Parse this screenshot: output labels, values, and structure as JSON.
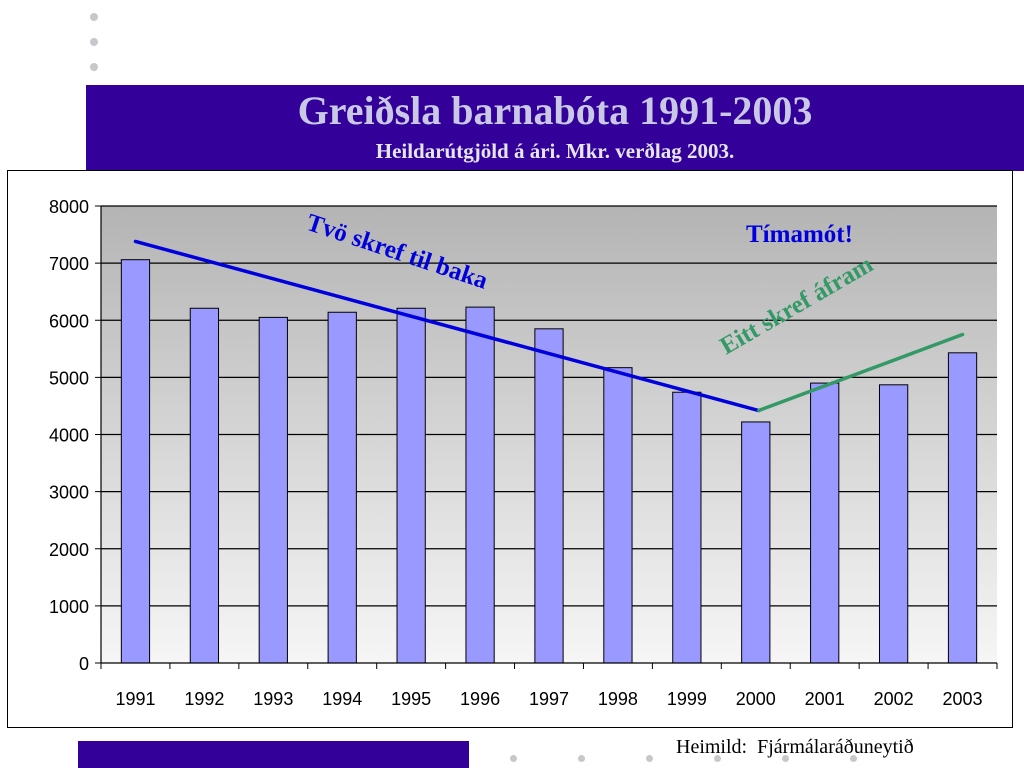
{
  "slide": {
    "title": "Greiðsla barnabóta 1991-2003",
    "subtitle": "Heildarútgjöld á ári. Mkr. verðlag 2003.",
    "source": "Heimild:  Fjármálaráðuneytið"
  },
  "colors": {
    "title_band": "#330099",
    "bar_fill": "#9999ff",
    "down_trend": "#0000dd",
    "up_trend": "#339966",
    "milestone_text": "#0000dd"
  },
  "chart_data": {
    "type": "bar",
    "categories": [
      "1991",
      "1992",
      "1993",
      "1994",
      "1995",
      "1996",
      "1997",
      "1998",
      "1999",
      "2000",
      "2001",
      "2002",
      "2003"
    ],
    "values": [
      7060,
      6210,
      6050,
      6140,
      6210,
      6230,
      5850,
      5170,
      4740,
      4220,
      4900,
      4870,
      5430
    ],
    "ylim": [
      0,
      8000
    ],
    "yticks": [
      0,
      1000,
      2000,
      3000,
      4000,
      5000,
      6000,
      7000,
      8000
    ],
    "grid": true,
    "annotations": {
      "down_label": "Tvö skref til baka",
      "up_label": "Eitt skref áfram",
      "milestone": "Tímamót!"
    },
    "trend_lines": [
      {
        "name": "down",
        "from": {
          "x": "1991",
          "y": 7380
        },
        "to": {
          "x": "2000",
          "y": 4420
        }
      },
      {
        "name": "up",
        "from": {
          "x": "2000",
          "y": 4420
        },
        "to": {
          "x": "2003",
          "y": 5750
        }
      }
    ]
  }
}
